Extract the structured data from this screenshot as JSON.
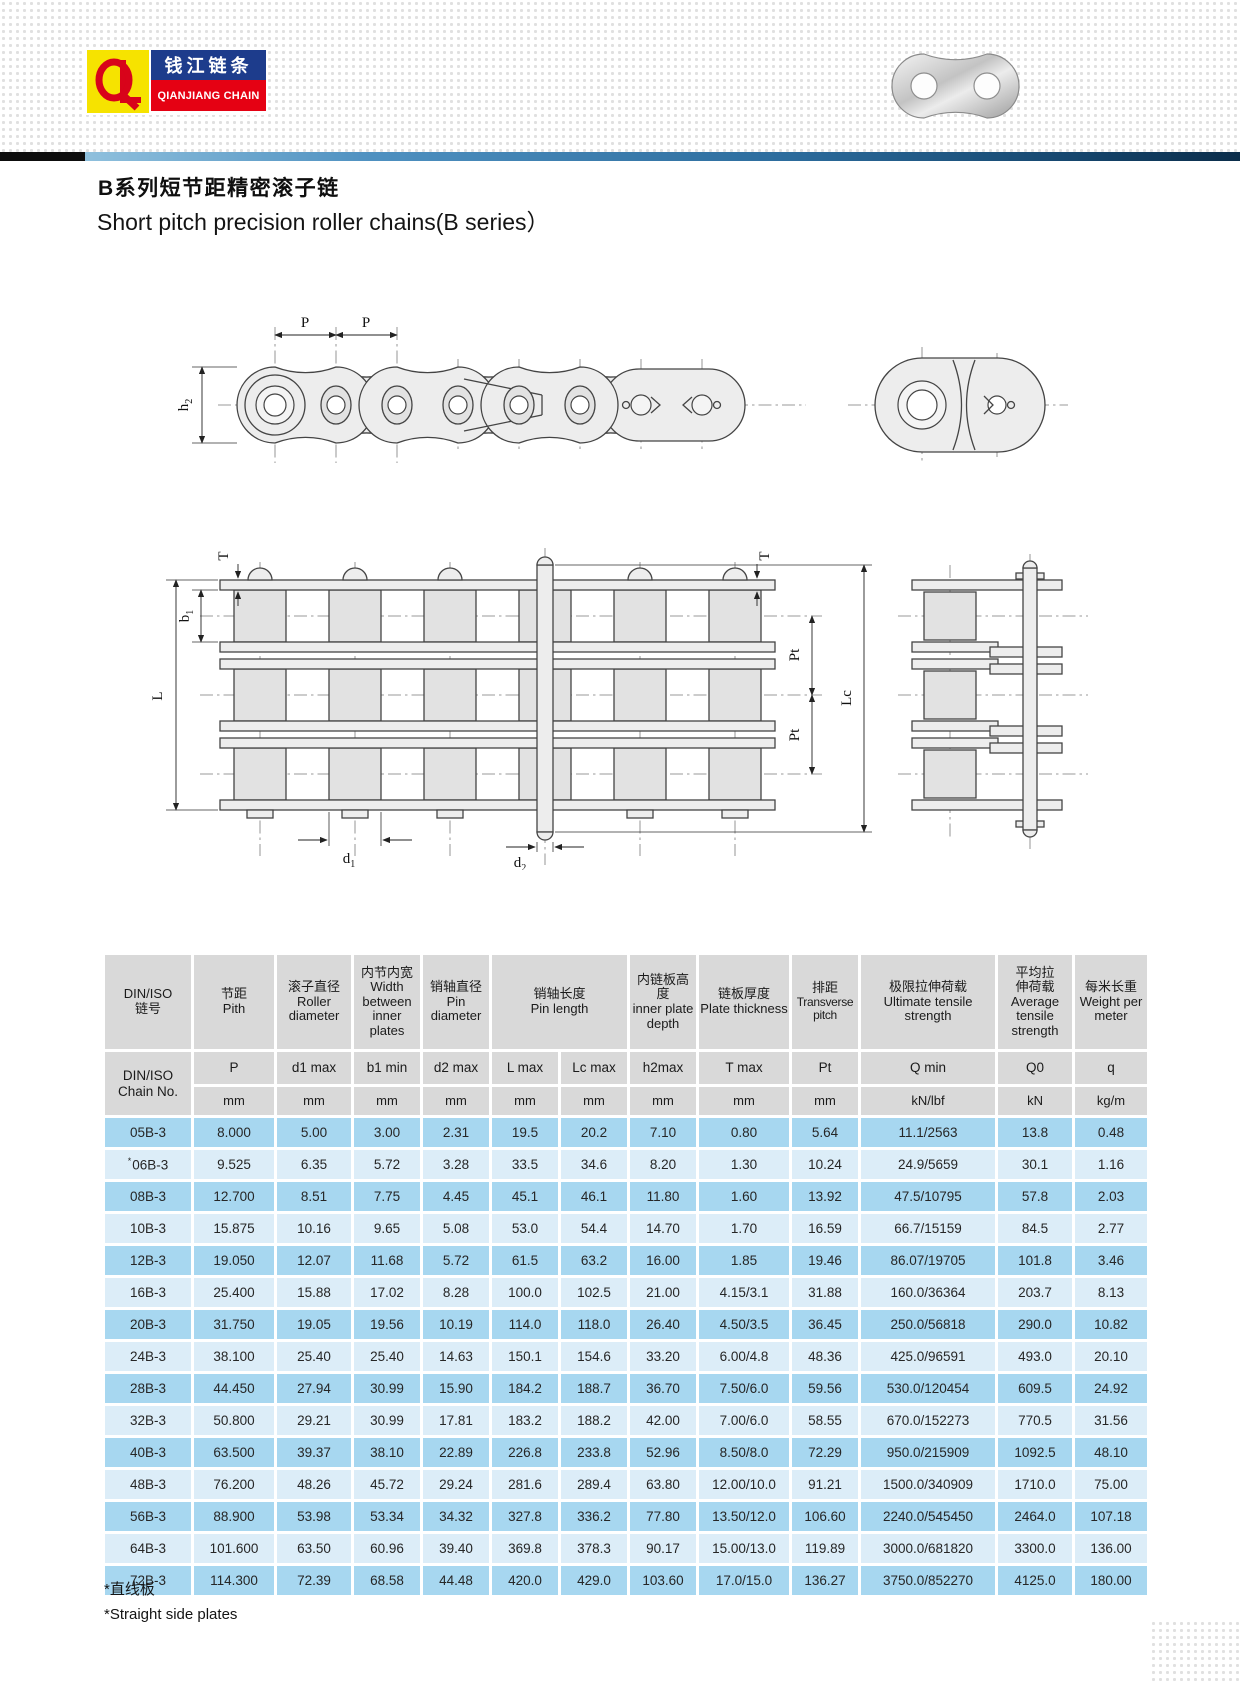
{
  "brand": {
    "name_zh": "钱江链条",
    "name_en": "QIANJIANG CHAIN"
  },
  "page": {
    "title_zh": "B系列短节距精密滚子链",
    "title_en": "Short pitch precision roller chains(B series）"
  },
  "drawings": {
    "side": {
      "p1": "P",
      "p2": "P",
      "h2_main": "h",
      "h2_sub": "2"
    },
    "plan": {
      "t_left": "T",
      "t_right": "T",
      "l": "L",
      "b1_main": "b",
      "b1_sub": "1",
      "d1_main": "d",
      "d1_sub": "1",
      "d2_main": "d",
      "d2_sub": "2",
      "pt_upper": "Pt",
      "pt_lower": "Pt",
      "lc": "Lc"
    }
  },
  "table": {
    "header": {
      "chain_zh": "DIN/ISO",
      "chain_zh2": "链号",
      "pitch_zh": "节距",
      "pitch_en": "Pith",
      "roller_zh": "滚子直径",
      "roller_en": "Roller diameter",
      "width_zh": "内节内宽",
      "width_en": "Width between inner plates",
      "pin_d_zh": "销轴直径",
      "pin_d_en": "Pin diameter",
      "pin_l_zh": "销轴长度",
      "pin_l_en": "Pin length",
      "depth_zh": "内链板高度",
      "depth_en": "inner plate depth",
      "thick_zh": "链板厚度",
      "thick_en": "Plate thickness",
      "tp_zh": "排距",
      "tp_en": "Transverse pitch",
      "uts_zh": "极限拉伸荷载",
      "uts_en": "Ultimate tensile strength",
      "ats_zh": "平均拉伸荷载",
      "ats_en": "Average tensile strength",
      "w_zh": "每米长重",
      "w_en": "Weight per meter",
      "chain_no_1": "DIN/ISO",
      "chain_no_2": "Chain No.",
      "symbols": [
        "P",
        "d1 max",
        "b1 min",
        "d2 max",
        "L max",
        "Lc max",
        "h2max",
        "T max",
        "Pt",
        "Q min",
        "Q0",
        "q"
      ],
      "units": [
        "mm",
        "mm",
        "mm",
        "mm",
        "mm",
        "mm",
        "mm",
        "mm",
        "mm",
        "kN/lbf",
        "kN",
        "kg/m"
      ]
    },
    "rows": [
      {
        "no": "05B-3",
        "star": "",
        "values": [
          "8.000",
          "5.00",
          "3.00",
          "2.31",
          "19.5",
          "20.2",
          "7.10",
          "0.80",
          "5.64",
          "11.1/2563",
          "13.8",
          "0.48"
        ]
      },
      {
        "no": "06B-3",
        "star": "*",
        "values": [
          "9.525",
          "6.35",
          "5.72",
          "3.28",
          "33.5",
          "34.6",
          "8.20",
          "1.30",
          "10.24",
          "24.9/5659",
          "30.1",
          "1.16"
        ]
      },
      {
        "no": "08B-3",
        "star": "",
        "values": [
          "12.700",
          "8.51",
          "7.75",
          "4.45",
          "45.1",
          "46.1",
          "11.80",
          "1.60",
          "13.92",
          "47.5/10795",
          "57.8",
          "2.03"
        ]
      },
      {
        "no": "10B-3",
        "star": "",
        "values": [
          "15.875",
          "10.16",
          "9.65",
          "5.08",
          "53.0",
          "54.4",
          "14.70",
          "1.70",
          "16.59",
          "66.7/15159",
          "84.5",
          "2.77"
        ]
      },
      {
        "no": "12B-3",
        "star": "",
        "values": [
          "19.050",
          "12.07",
          "11.68",
          "5.72",
          "61.5",
          "63.2",
          "16.00",
          "1.85",
          "19.46",
          "86.07/19705",
          "101.8",
          "3.46"
        ]
      },
      {
        "no": "16B-3",
        "star": "",
        "values": [
          "25.400",
          "15.88",
          "17.02",
          "8.28",
          "100.0",
          "102.5",
          "21.00",
          "4.15/3.1",
          "31.88",
          "160.0/36364",
          "203.7",
          "8.13"
        ]
      },
      {
        "no": "20B-3",
        "star": "",
        "values": [
          "31.750",
          "19.05",
          "19.56",
          "10.19",
          "114.0",
          "118.0",
          "26.40",
          "4.50/3.5",
          "36.45",
          "250.0/56818",
          "290.0",
          "10.82"
        ]
      },
      {
        "no": "24B-3",
        "star": "",
        "values": [
          "38.100",
          "25.40",
          "25.40",
          "14.63",
          "150.1",
          "154.6",
          "33.20",
          "6.00/4.8",
          "48.36",
          "425.0/96591",
          "493.0",
          "20.10"
        ]
      },
      {
        "no": "28B-3",
        "star": "",
        "values": [
          "44.450",
          "27.94",
          "30.99",
          "15.90",
          "184.2",
          "188.7",
          "36.70",
          "7.50/6.0",
          "59.56",
          "530.0/120454",
          "609.5",
          "24.92"
        ]
      },
      {
        "no": "32B-3",
        "star": "",
        "values": [
          "50.800",
          "29.21",
          "30.99",
          "17.81",
          "183.2",
          "188.2",
          "42.00",
          "7.00/6.0",
          "58.55",
          "670.0/152273",
          "770.5",
          "31.56"
        ]
      },
      {
        "no": "40B-3",
        "star": "",
        "values": [
          "63.500",
          "39.37",
          "38.10",
          "22.89",
          "226.8",
          "233.8",
          "52.96",
          "8.50/8.0",
          "72.29",
          "950.0/215909",
          "1092.5",
          "48.10"
        ]
      },
      {
        "no": "48B-3",
        "star": "",
        "values": [
          "76.200",
          "48.26",
          "45.72",
          "29.24",
          "281.6",
          "289.4",
          "63.80",
          "12.00/10.0",
          "91.21",
          "1500.0/340909",
          "1710.0",
          "75.00"
        ]
      },
      {
        "no": "56B-3",
        "star": "",
        "values": [
          "88.900",
          "53.98",
          "53.34",
          "34.32",
          "327.8",
          "336.2",
          "77.80",
          "13.50/12.0",
          "106.60",
          "2240.0/545450",
          "2464.0",
          "107.18"
        ]
      },
      {
        "no": "64B-3",
        "star": "",
        "values": [
          "101.600",
          "63.50",
          "60.96",
          "39.40",
          "369.8",
          "378.3",
          "90.17",
          "15.00/13.0",
          "119.89",
          "3000.0/681820",
          "3300.0",
          "136.00"
        ]
      },
      {
        "no": "72B-3",
        "star": "",
        "values": [
          "114.300",
          "72.39",
          "68.58",
          "44.48",
          "420.0",
          "429.0",
          "103.60",
          "17.0/15.0",
          "136.27",
          "3750.0/852270",
          "4125.0",
          "180.00"
        ]
      }
    ]
  },
  "footnotes": {
    "zh": "*直线板",
    "en": "*Straight side plates"
  }
}
